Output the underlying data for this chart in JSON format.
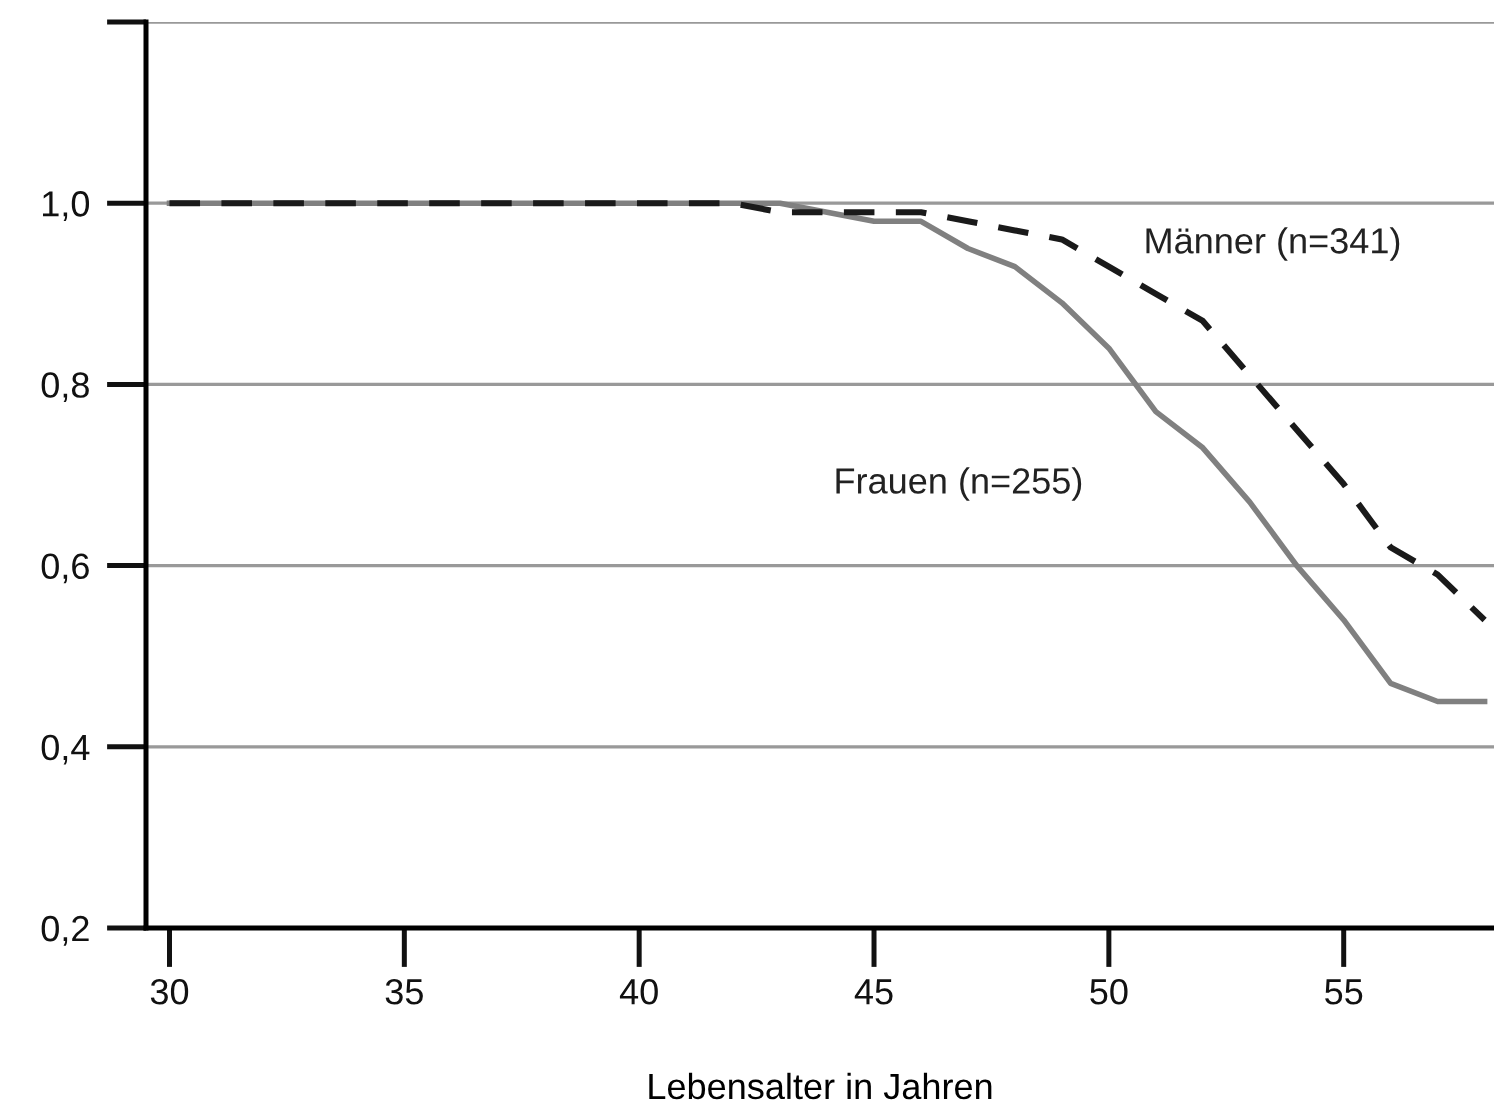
{
  "chart_data": {
    "type": "line",
    "xlabel": "Lebensalter in Jahren",
    "xlim": [
      29.5,
      58.2
    ],
    "xticks": [
      30,
      35,
      40,
      45,
      50,
      55
    ],
    "ylim": [
      0.2,
      1.2
    ],
    "yticks": [
      {
        "value": 0.2,
        "label": "0,2"
      },
      {
        "value": 0.4,
        "label": "0,4"
      },
      {
        "value": 0.6,
        "label": "0,6"
      },
      {
        "value": 0.8,
        "label": "0,8"
      },
      {
        "value": 1.0,
        "label": "1,0"
      },
      {
        "value": 1.2,
        "label": null
      }
    ],
    "grid": "y",
    "legend": false,
    "series": [
      {
        "name": "Männer (n=341)",
        "color": "#1a1a1a",
        "line_style": "dashed",
        "x": [
          30,
          42,
          43,
          44,
          45,
          46,
          47,
          48,
          49,
          50,
          51,
          52,
          53,
          54,
          55,
          56,
          57,
          58
        ],
        "values": [
          1.0,
          1.0,
          0.99,
          0.99,
          0.99,
          0.99,
          0.98,
          0.97,
          0.96,
          0.93,
          0.9,
          0.87,
          0.81,
          0.75,
          0.69,
          0.62,
          0.59,
          0.54
        ]
      },
      {
        "name": "Frauen (n=255)",
        "color": "#808080",
        "line_style": "solid",
        "x": [
          30,
          43,
          44,
          45,
          46,
          47,
          48,
          49,
          50,
          51,
          52,
          53,
          54,
          55,
          56,
          57,
          58
        ],
        "values": [
          1.0,
          1.0,
          0.99,
          0.98,
          0.98,
          0.95,
          0.93,
          0.89,
          0.84,
          0.77,
          0.73,
          0.67,
          0.6,
          0.54,
          0.47,
          0.45,
          0.45
        ]
      }
    ]
  }
}
